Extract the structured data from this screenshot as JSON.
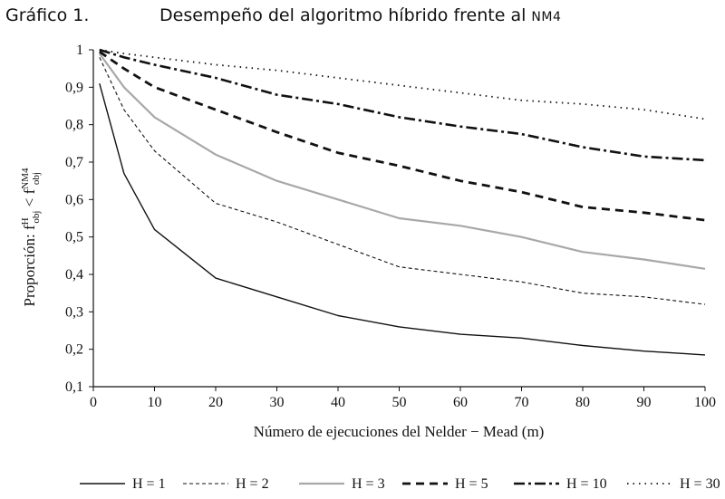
{
  "header": {
    "figure_number": "Gráfico 1.",
    "title_main": "Desempeño del algoritmo híbrido frente al ",
    "title_suffix": "NM4"
  },
  "chart_data": {
    "type": "line",
    "title": "Desempeño del algoritmo híbrido frente al NM4",
    "xlabel": "Número de ejecuciones del Nelder − Mead (m)",
    "ylabel": {
      "prefix": "Proporción: f",
      "sub1": "obj",
      "sup1": "H",
      "op": " < f",
      "sub2": "obj",
      "sup2": "NM4"
    },
    "xlim": [
      0,
      100
    ],
    "ylim": [
      0.1,
      1
    ],
    "x_ticks": [
      0,
      10,
      20,
      30,
      40,
      50,
      60,
      70,
      80,
      90,
      100
    ],
    "y_ticks": [
      "0,1",
      "0,2",
      "0,3",
      "0,4",
      "0,5",
      "0,6",
      "0,7",
      "0,8",
      "0,9",
      "1"
    ],
    "y_tick_values": [
      0.1,
      0.2,
      0.3,
      0.4,
      0.5,
      0.6,
      0.7,
      0.8,
      0.9,
      1.0
    ],
    "grid": false,
    "legend_position": "bottom",
    "series": [
      {
        "name": "H = 1",
        "style": "solid-black",
        "x": [
          1,
          5,
          10,
          20,
          30,
          40,
          50,
          60,
          70,
          80,
          90,
          100
        ],
        "y": [
          0.91,
          0.67,
          0.52,
          0.39,
          0.34,
          0.29,
          0.26,
          0.24,
          0.23,
          0.21,
          0.195,
          0.185
        ]
      },
      {
        "name": "H = 2",
        "style": "thin-dashed",
        "x": [
          1,
          5,
          10,
          20,
          30,
          40,
          50,
          60,
          70,
          80,
          90,
          100
        ],
        "y": [
          0.98,
          0.84,
          0.73,
          0.59,
          0.54,
          0.48,
          0.42,
          0.4,
          0.38,
          0.35,
          0.34,
          0.32
        ]
      },
      {
        "name": "H = 3",
        "style": "solid-gray",
        "x": [
          1,
          5,
          10,
          20,
          30,
          40,
          50,
          60,
          70,
          80,
          90,
          100
        ],
        "y": [
          0.99,
          0.9,
          0.82,
          0.72,
          0.65,
          0.6,
          0.55,
          0.53,
          0.5,
          0.46,
          0.44,
          0.415
        ]
      },
      {
        "name": "H = 5",
        "style": "thick-dashed",
        "x": [
          1,
          5,
          10,
          20,
          30,
          40,
          50,
          60,
          70,
          80,
          90,
          100
        ],
        "y": [
          0.995,
          0.95,
          0.9,
          0.84,
          0.78,
          0.725,
          0.69,
          0.65,
          0.62,
          0.58,
          0.565,
          0.545
        ]
      },
      {
        "name": "H = 10",
        "style": "dash-dot",
        "x": [
          1,
          5,
          10,
          20,
          30,
          40,
          50,
          60,
          70,
          80,
          90,
          100
        ],
        "y": [
          1.0,
          0.98,
          0.96,
          0.925,
          0.88,
          0.855,
          0.82,
          0.795,
          0.775,
          0.74,
          0.715,
          0.705
        ]
      },
      {
        "name": "H = 30",
        "style": "dotted",
        "x": [
          1,
          5,
          10,
          20,
          30,
          40,
          50,
          60,
          70,
          80,
          90,
          100
        ],
        "y": [
          1.0,
          0.99,
          0.98,
          0.96,
          0.945,
          0.925,
          0.905,
          0.885,
          0.865,
          0.855,
          0.84,
          0.815
        ]
      }
    ]
  }
}
